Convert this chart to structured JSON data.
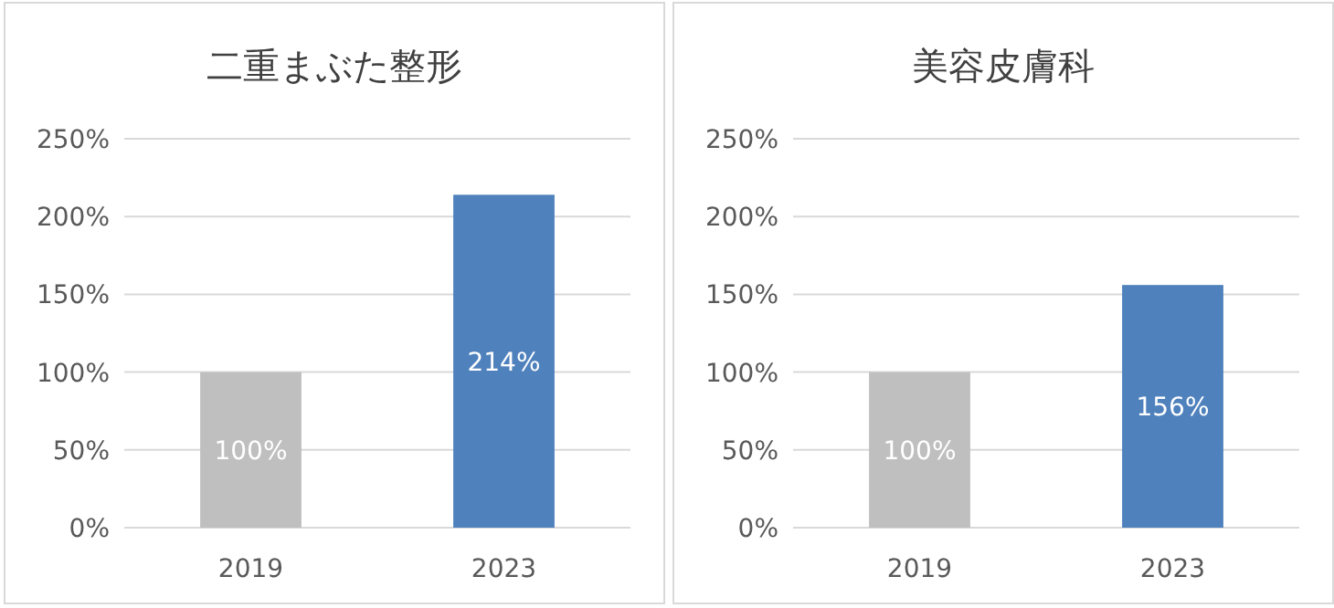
{
  "chart_data": [
    {
      "type": "bar",
      "title": "二重まぶた整形",
      "categories": [
        "2019",
        "2023"
      ],
      "values": [
        100,
        214
      ],
      "colors": [
        "#bfbfbf",
        "#4f81bd"
      ],
      "value_labels": [
        "100%",
        "214%"
      ],
      "ylim": [
        0,
        250
      ],
      "yticks": [
        {
          "value": 0,
          "label": "0%"
        },
        {
          "value": 50,
          "label": "50%"
        },
        {
          "value": 100,
          "label": "100%"
        },
        {
          "value": 150,
          "label": "150%"
        },
        {
          "value": 200,
          "label": "200%"
        },
        {
          "value": 250,
          "label": "250%"
        }
      ],
      "grid": "y"
    },
    {
      "type": "bar",
      "title": "美容皮膚科",
      "categories": [
        "2019",
        "2023"
      ],
      "values": [
        100,
        156
      ],
      "colors": [
        "#bfbfbf",
        "#4f81bd"
      ],
      "value_labels": [
        "100%",
        "156%"
      ],
      "ylim": [
        0,
        250
      ],
      "yticks": [
        {
          "value": 0,
          "label": "0%"
        },
        {
          "value": 50,
          "label": "50%"
        },
        {
          "value": 100,
          "label": "100%"
        },
        {
          "value": 150,
          "label": "150%"
        },
        {
          "value": 200,
          "label": "200%"
        },
        {
          "value": 250,
          "label": "250%"
        }
      ],
      "grid": "y"
    }
  ]
}
